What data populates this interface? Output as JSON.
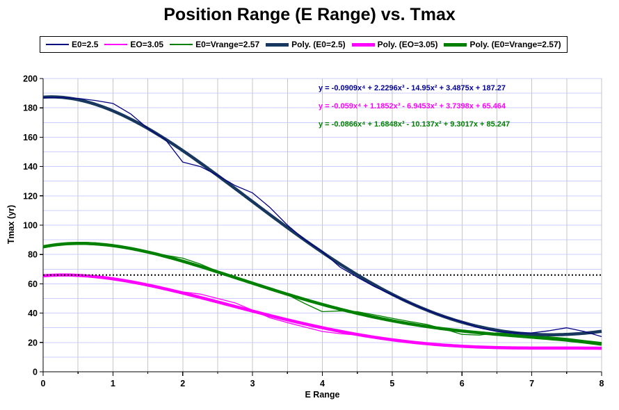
{
  "chart_data": {
    "type": "line",
    "title": "Position Range (E Range) vs. Tmax",
    "xlabel": "E Range",
    "ylabel": "Tmax (yr)",
    "xlim": [
      0,
      8
    ],
    "ylim": [
      0,
      200
    ],
    "x_major_tick": 1,
    "x_minor_tick": 0.5,
    "y_major_tick": 20,
    "y_minor_gridline": 10,
    "grid_vertical_color": "#c6c6c6",
    "grid_horizontal_color": "#ccccff",
    "axis_color": "#000000",
    "legend_position": "top",
    "reference_line": {
      "y": 66,
      "style": "dotted",
      "color": "#000000"
    },
    "x_points": [
      0,
      0.25,
      0.5,
      0.75,
      1,
      1.25,
      1.5,
      1.75,
      2,
      2.25,
      2.5,
      2.75,
      3,
      3.25,
      3.5,
      3.75,
      4,
      4.25,
      4.5,
      4.75,
      5,
      5.25,
      5.5,
      5.75,
      6,
      6.25,
      6.5,
      6.75,
      7,
      7.25,
      7.5,
      7.75,
      8
    ],
    "series": [
      {
        "name": "E0=2.5",
        "kind": "data",
        "color": "#000080",
        "stroke_width": 1.3,
        "y": [
          187,
          187,
          186.5,
          185,
          183,
          176,
          166,
          158.5,
          143,
          140,
          134,
          127,
          122,
          112,
          100,
          90,
          82,
          71.5,
          64.5,
          58,
          52.5,
          47,
          42,
          37.5,
          34,
          30,
          27.5,
          26.5,
          26.5,
          28,
          30,
          27.5,
          24
        ]
      },
      {
        "name": "EO=3.05",
        "kind": "data",
        "color": "#ff00ff",
        "stroke_width": 1.3,
        "y": [
          66,
          66.2,
          66,
          65.5,
          63.5,
          61.5,
          59,
          56.5,
          54.5,
          53,
          50,
          47,
          42,
          36.8,
          33.5,
          30.5,
          27.5,
          26,
          25,
          23.8,
          22.3,
          20.5,
          19.2,
          18.2,
          17.4,
          16.9,
          16.5,
          16.2,
          16.1,
          16.1,
          16.1,
          16,
          16
        ]
      },
      {
        "name": "E0=Vrange=2.57",
        "kind": "data",
        "color": "#008000",
        "stroke_width": 1.3,
        "y": [
          84.5,
          86.5,
          88.3,
          88,
          86.5,
          84.5,
          82,
          79.5,
          77.5,
          73.5,
          68.5,
          64.5,
          61,
          57,
          52.5,
          46.5,
          41,
          41.5,
          41,
          38.8,
          36.5,
          34.3,
          32.3,
          29,
          25.5,
          25,
          26.5,
          26,
          24.5,
          23.8,
          22.8,
          21.3,
          20
        ]
      },
      {
        "name": "Poly. (E0=2.5)",
        "kind": "polynomial_trendline",
        "color": "#17375e",
        "stroke_width": 4.5,
        "coefficients": [
          -0.0909,
          2.2296,
          -14.95,
          3.4875,
          187.27
        ]
      },
      {
        "name": "Poly. (EO=3.05)",
        "kind": "polynomial_trendline",
        "color": "#ff00ff",
        "stroke_width": 4.5,
        "coefficients": [
          -0.059,
          1.1852,
          -6.9453,
          3.7398,
          65.464
        ]
      },
      {
        "name": "Poly. (E0=Vrange=2.57)",
        "kind": "polynomial_trendline",
        "color": "#008000",
        "stroke_width": 4.5,
        "coefficients": [
          -0.0866,
          1.6848,
          -10.137,
          9.3017,
          85.247
        ]
      }
    ],
    "draw_order": [
      4,
      1,
      "reference",
      5,
      2,
      3,
      0
    ]
  },
  "equations": [
    {
      "text": "y = -0.0909x⁴ + 2.2296x³ - 14.95x² + 3.4875x + 187.27",
      "color": "#000099"
    },
    {
      "text": "y = -0.059x⁴ + 1.1852x³ - 6.9453x² + 3.7398x + 65.464",
      "color": "#ff00ff"
    },
    {
      "text": "y = -0.0866x⁴ + 1.6848x³ - 10.137x² + 9.3017x + 85.247",
      "color": "#008000"
    }
  ]
}
